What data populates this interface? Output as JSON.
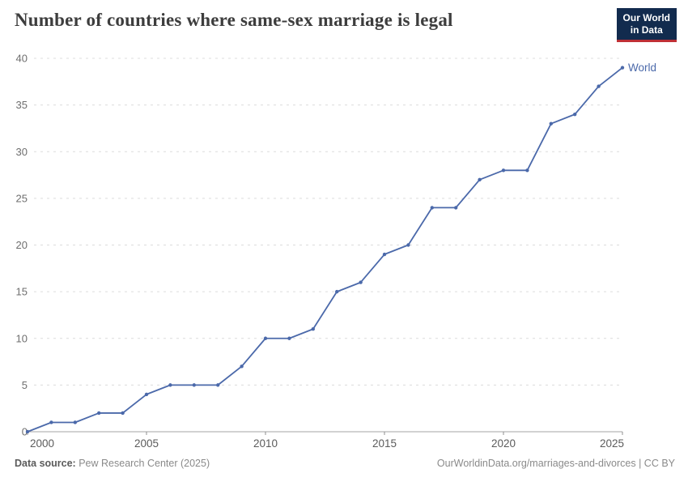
{
  "header": {
    "title": "Number of countries where same-sex marriage is legal",
    "logo": {
      "line1": "Our World",
      "line2": "in Data"
    }
  },
  "chart_data": {
    "type": "line",
    "title": "Number of countries where same-sex marriage is legal",
    "x": [
      2000,
      2001,
      2002,
      2003,
      2004,
      2005,
      2006,
      2007,
      2008,
      2009,
      2010,
      2011,
      2012,
      2013,
      2014,
      2015,
      2016,
      2017,
      2018,
      2019,
      2020,
      2021,
      2022,
      2023,
      2024,
      2025
    ],
    "series": [
      {
        "name": "World",
        "values": [
          0,
          1,
          1,
          2,
          2,
          4,
          5,
          5,
          5,
          7,
          10,
          10,
          11,
          15,
          16,
          19,
          20,
          24,
          24,
          27,
          28,
          28,
          33,
          34,
          37,
          39
        ],
        "color": "#4b69aa"
      }
    ],
    "xlim": [
      2000,
      2025
    ],
    "ylim": [
      0,
      40
    ],
    "xticks": [
      2000,
      2005,
      2010,
      2015,
      2020,
      2025
    ],
    "yticks": [
      0,
      5,
      10,
      15,
      20,
      25,
      30,
      35,
      40
    ],
    "grid": "horizontal dashed",
    "legend": "end-of-line label",
    "marker": "dot"
  },
  "footer": {
    "source_label": "Data source:",
    "source_value": "Pew Research Center (2025)",
    "rights": "OurWorldinData.org/marriages-and-divorces | CC BY"
  },
  "colors": {
    "line": "#4b69aa",
    "grid": "#dcdcdc",
    "axis": "#a5a5a5",
    "tick": "#8f8f8f",
    "y_tick_label": "#6e6e6e",
    "x_tick_label": "#5b5b5b",
    "title": "#3d3d3d",
    "footer_text": "#8a8a8a",
    "logo_bg": "#122b4e",
    "logo_red": "#bf3036"
  }
}
